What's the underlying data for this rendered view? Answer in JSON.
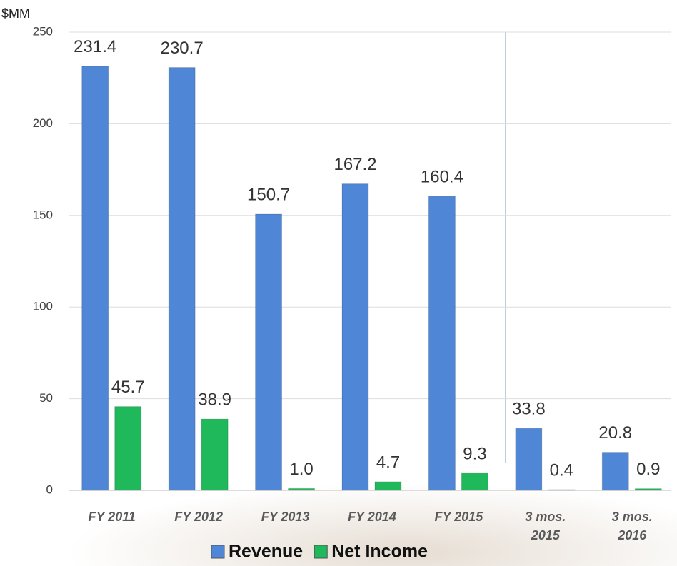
{
  "chart_data": {
    "type": "bar",
    "y_axis_label": "$MM",
    "categories": [
      "FY 2011",
      "FY 2012",
      "FY 2013",
      "FY 2014",
      "FY 2015",
      "3 mos. 2015",
      "3 mos. 2016"
    ],
    "series": [
      {
        "name": "Revenue",
        "color": "#4f86d6",
        "values": [
          231.4,
          230.7,
          150.7,
          167.2,
          160.4,
          33.8,
          20.8
        ],
        "value_labels": [
          "231.4",
          "230.7",
          "150.7",
          "167.2",
          "160.4",
          "33.8",
          "20.8"
        ]
      },
      {
        "name": "Net Income",
        "color": "#1fb85a",
        "values": [
          45.7,
          38.9,
          1.0,
          4.7,
          9.3,
          0.4,
          0.9
        ],
        "value_labels": [
          "45.7",
          "38.9",
          "1.0",
          "4.7",
          "9.3",
          "0.4",
          "0.9"
        ]
      }
    ],
    "ylim": [
      0,
      250
    ],
    "yticks": [
      0,
      50,
      100,
      150,
      200,
      250
    ],
    "grid": true,
    "legend": "bottom"
  }
}
